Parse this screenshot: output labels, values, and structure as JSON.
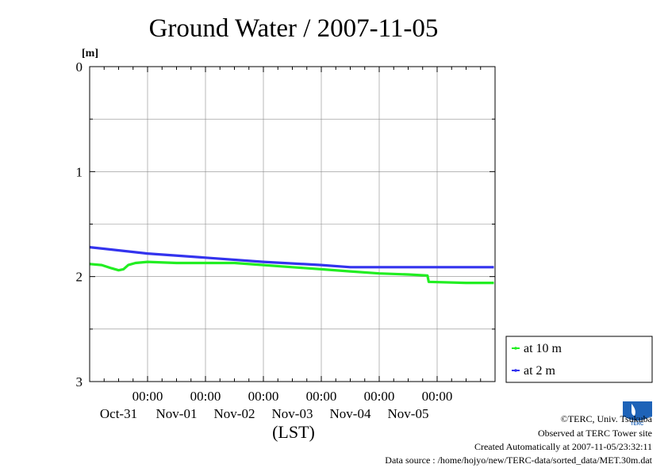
{
  "chart_data": {
    "type": "line",
    "title": "Ground Water / 2007-11-05",
    "ylabel": "[m]",
    "xlabel": "(LST)",
    "ylim": [
      0,
      3
    ],
    "y_inverted": true,
    "y_ticks": [
      "0",
      "1",
      "2",
      "3"
    ],
    "x_range": [
      "2007-10-30 00:00",
      "2007-11-06 00:00"
    ],
    "x_ticks": [
      {
        "time": "00:00",
        "date": "Oct-31"
      },
      {
        "time": "00:00",
        "date": "Nov-01"
      },
      {
        "time": "00:00",
        "date": "Nov-02"
      },
      {
        "time": "00:00",
        "date": "Nov-03"
      },
      {
        "time": "00:00",
        "date": "Nov-04"
      },
      {
        "time": "00:00",
        "date": "Nov-05"
      }
    ],
    "grid": true,
    "legend_position": "right",
    "series": [
      {
        "name": "at 10 m",
        "color": "#22ee22",
        "points": [
          [
            "2007-10-30 00:00",
            1.88
          ],
          [
            "2007-10-30 05:00",
            1.89
          ],
          [
            "2007-10-30 09:00",
            1.92
          ],
          [
            "2007-10-30 12:00",
            1.94
          ],
          [
            "2007-10-30 14:00",
            1.93
          ],
          [
            "2007-10-30 16:00",
            1.89
          ],
          [
            "2007-10-30 19:00",
            1.87
          ],
          [
            "2007-10-31 00:00",
            1.86
          ],
          [
            "2007-10-31 12:00",
            1.87
          ],
          [
            "2007-11-01 00:00",
            1.87
          ],
          [
            "2007-11-01 12:00",
            1.87
          ],
          [
            "2007-11-02 00:00",
            1.89
          ],
          [
            "2007-11-02 12:00",
            1.91
          ],
          [
            "2007-11-03 00:00",
            1.93
          ],
          [
            "2007-11-03 12:00",
            1.95
          ],
          [
            "2007-11-04 00:00",
            1.97
          ],
          [
            "2007-11-04 12:00",
            1.98
          ],
          [
            "2007-11-04 20:00",
            1.99
          ],
          [
            "2007-11-04 20:30",
            2.05
          ],
          [
            "2007-11-05 12:00",
            2.06
          ],
          [
            "2007-11-05 23:30",
            2.06
          ]
        ]
      },
      {
        "name": "at 2 m",
        "color": "#3333ee",
        "points": [
          [
            "2007-10-30 00:00",
            1.72
          ],
          [
            "2007-10-31 00:00",
            1.78
          ],
          [
            "2007-11-01 00:00",
            1.82
          ],
          [
            "2007-11-02 00:00",
            1.86
          ],
          [
            "2007-11-03 00:00",
            1.89
          ],
          [
            "2007-11-03 12:00",
            1.91
          ],
          [
            "2007-11-04 00:00",
            1.91
          ],
          [
            "2007-11-05 23:30",
            1.91
          ]
        ]
      }
    ]
  },
  "credits": {
    "copyright": "©TERC, Univ. Tsukuba",
    "site": "Observed at TERC Tower site",
    "created": "Created Automatically at 2007-11-05/23:32:11",
    "source": "Data source : /home/hojyo/new/TERC-data/sorted_data/MET.30m.dat",
    "logo_text": "TERC"
  }
}
